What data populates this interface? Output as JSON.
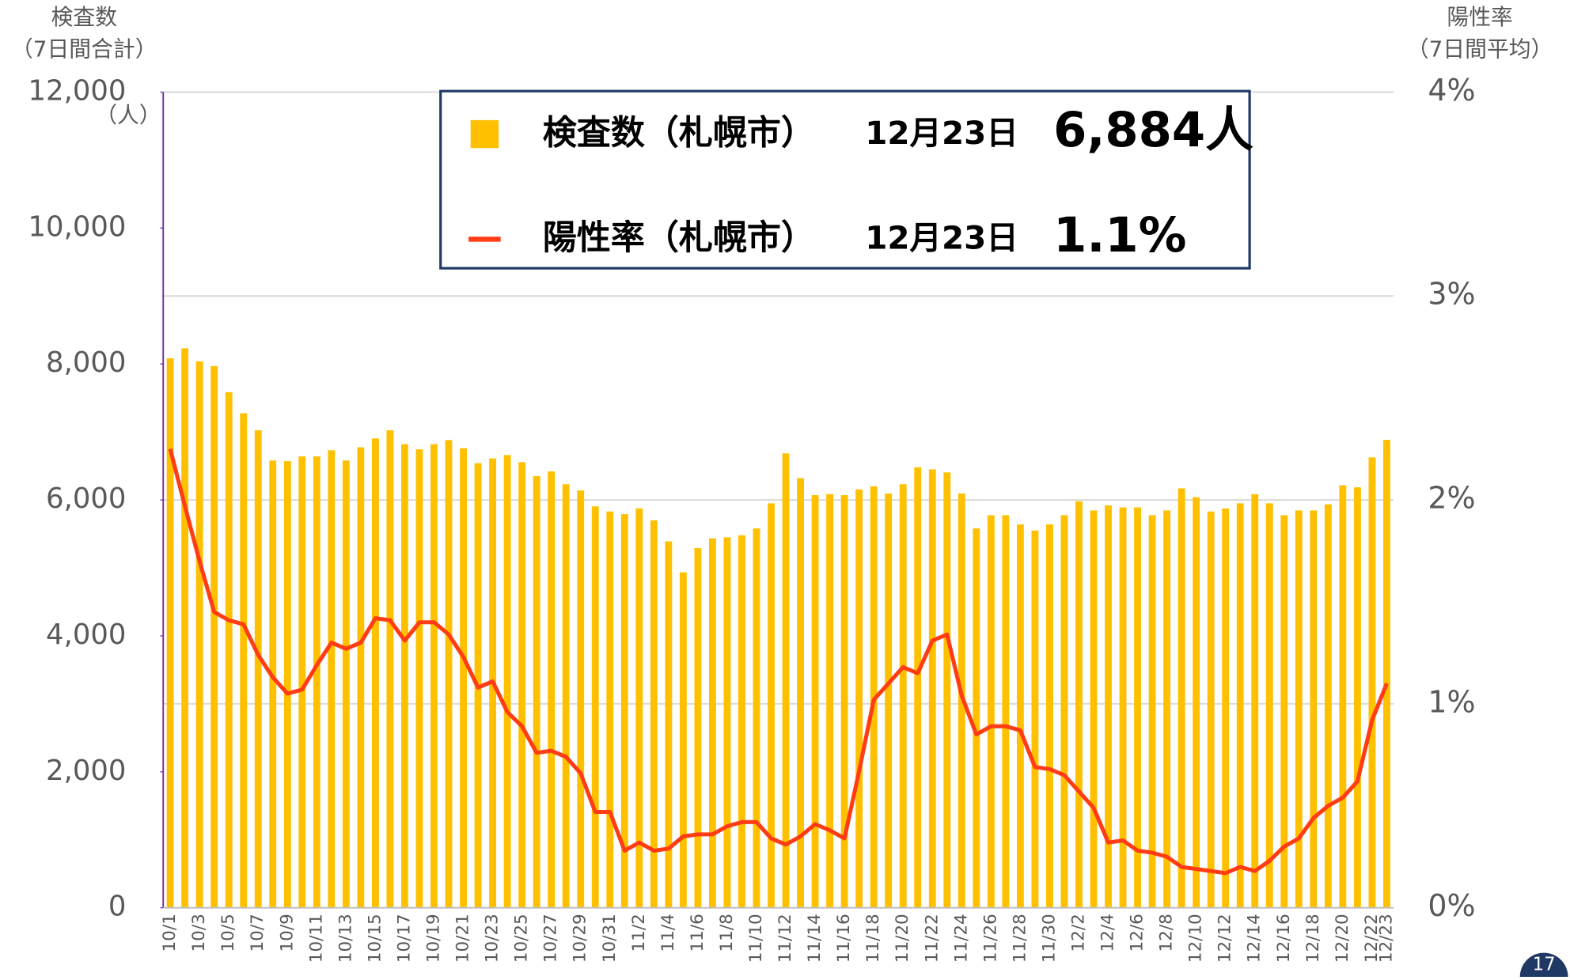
{
  "chart_data": {
    "type": "bar_line",
    "y_axis_title": [
      "検査数",
      "（7日間合計）"
    ],
    "y_axis_unit": "（人）",
    "y2_axis_title": [
      "陽性率",
      "（7日間平均）"
    ],
    "categories": [
      "10/1",
      null,
      "10/3",
      null,
      "10/5",
      null,
      "10/7",
      null,
      "10/9",
      null,
      "10/11",
      null,
      "10/13",
      null,
      "10/15",
      null,
      "10/17",
      null,
      "10/19",
      null,
      "10/21",
      null,
      "10/23",
      null,
      "10/25",
      null,
      "10/27",
      null,
      "10/29",
      null,
      "10/31",
      null,
      "11/2",
      null,
      "11/4",
      null,
      "11/6",
      null,
      "11/8",
      null,
      "11/10",
      null,
      "11/12",
      null,
      "11/14",
      null,
      "11/16",
      null,
      "11/18",
      null,
      "11/20",
      null,
      "11/22",
      null,
      "11/24",
      null,
      "11/26",
      null,
      "11/28",
      null,
      "11/30",
      null,
      "12/2",
      null,
      "12/4",
      null,
      "12/6",
      null,
      "12/8",
      null,
      "12/10",
      null,
      "12/12",
      null,
      "12/14",
      null,
      "12/16",
      null,
      "12/18",
      null,
      "12/20",
      null,
      "12/22",
      "12/23"
    ],
    "series": [
      {
        "name": "検査数（札幌市）",
        "color": "#FFC000",
        "axis": "y",
        "values": [
          8085,
          8230,
          8040,
          7970,
          7585,
          7275,
          7025,
          6580,
          6570,
          6640,
          6640,
          6730,
          6580,
          6775,
          6905,
          7025,
          6820,
          6745,
          6820,
          6880,
          6760,
          6540,
          6610,
          6660,
          6555,
          6350,
          6420,
          6230,
          6140,
          5905,
          5830,
          5790,
          5875,
          5700,
          5390,
          4935,
          5290,
          5435,
          5450,
          5480,
          5580,
          5950,
          6685,
          6320,
          6070,
          6085,
          6070,
          6155,
          6200,
          6095,
          6230,
          6480,
          6450,
          6405,
          6095,
          5580,
          5775,
          5775,
          5640,
          5550,
          5640,
          5775,
          5980,
          5845,
          5920,
          5890,
          5890,
          5775,
          5845,
          6170,
          6040,
          5830,
          5875,
          5950,
          6085,
          5950,
          5775,
          5845,
          5845,
          5935,
          6215,
          6185,
          6625,
          6884
        ]
      },
      {
        "name": "陽性率（札幌市）",
        "color": "#FF3C14",
        "axis": "y2",
        "values": [
          2.25,
          1.97,
          1.7,
          1.45,
          1.41,
          1.39,
          1.24,
          1.13,
          1.05,
          1.07,
          1.19,
          1.3,
          1.27,
          1.3,
          1.42,
          1.41,
          1.31,
          1.4,
          1.4,
          1.34,
          1.23,
          1.08,
          1.11,
          0.96,
          0.89,
          0.76,
          0.77,
          0.74,
          0.66,
          0.47,
          0.47,
          0.28,
          0.32,
          0.28,
          0.29,
          0.35,
          0.36,
          0.36,
          0.4,
          0.42,
          0.42,
          0.34,
          0.31,
          0.35,
          0.41,
          0.38,
          0.34,
          0.67,
          1.02,
          1.1,
          1.18,
          1.15,
          1.31,
          1.34,
          1.04,
          0.85,
          0.89,
          0.89,
          0.87,
          0.69,
          0.68,
          0.65,
          0.57,
          0.49,
          0.32,
          0.33,
          0.28,
          0.27,
          0.25,
          0.2,
          0.19,
          0.18,
          0.17,
          0.2,
          0.18,
          0.23,
          0.3,
          0.34,
          0.44,
          0.5,
          0.54,
          0.62,
          0.92,
          1.1
        ]
      }
    ],
    "ylim": [
      0,
      12000
    ],
    "yticks": [
      0,
      {
        "value": 2000,
        "label": "2,000"
      },
      {
        "value": 4000,
        "label": "4,000"
      },
      {
        "value": 6000,
        "label": "6,000"
      },
      {
        "value": 8000,
        "label": "8,000"
      },
      {
        "value": 10000,
        "label": "10,000"
      },
      {
        "value": 12000,
        "label": "12,000"
      }
    ],
    "y2lim": [
      0,
      4
    ],
    "y2ticks": [
      {
        "value": 0,
        "label": "0%"
      },
      {
        "value": 1,
        "label": "1%"
      },
      {
        "value": 2,
        "label": "2%"
      },
      {
        "value": 3,
        "label": "3%"
      },
      {
        "value": 4,
        "label": "4%"
      }
    ],
    "grid": "y2",
    "legend_box": [
      {
        "name": "検査数（札幌市）",
        "date": "12月23日",
        "value": "6,884人"
      },
      {
        "name": "陽性率（札幌市）",
        "date": "12月23日",
        "value": "1.1%"
      }
    ],
    "page_number": "17"
  }
}
